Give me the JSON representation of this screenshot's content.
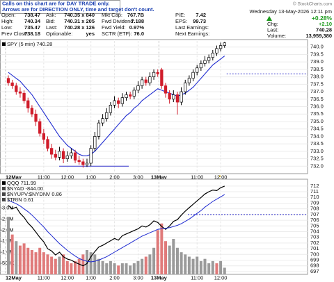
{
  "header": {
    "notice": [
      "Calls on this chart are for DAY TRADE only.",
      "Arrows are for DIRECTION ONLY, time and target don't count."
    ],
    "copyright": "© StockCharts.com",
    "rows": [
      [
        [
          "Open:",
          "738.47"
        ],
        [
          "Ask:",
          "740.35 x 840"
        ],
        [
          "Mkt Cap:",
          "767.7B"
        ],
        [
          "P/E:",
          "7.42"
        ]
      ],
      [
        [
          "High:",
          "740.34"
        ],
        [
          "Bid:",
          "740.31 x 205"
        ],
        [
          "Fwd Dividend:",
          "7.188"
        ],
        [
          "EPS:",
          "99.73"
        ]
      ],
      [
        [
          "Low:",
          "735.47"
        ],
        [
          "Last:",
          "740.28 x 126"
        ],
        [
          "Fwd Yield:",
          "0.97%"
        ],
        [
          "Last Earnings:"
        ]
      ],
      [
        [
          "Prev Close:",
          "738.18"
        ],
        [
          "Optionable:",
          "yes"
        ],
        [
          "SCTR (ETF):",
          "76.0"
        ],
        [
          "Next Earnings:"
        ]
      ]
    ],
    "date": "Wednesday 13-May-2026 12:11 pm",
    "change": "+0.28%",
    "stats": [
      [
        "Chg:",
        "+2.10"
      ],
      [
        "Last:",
        "740.28"
      ],
      [
        "Volume:",
        "13,959,380"
      ]
    ]
  },
  "chart_data": [
    {
      "type": "candlestick",
      "name": "SPY (5 min) 740.28",
      "categories": [
        "12May",
        null,
        null,
        null,
        null,
        null,
        null,
        null,
        null,
        "11:00",
        null,
        null,
        null,
        null,
        null,
        "12:00",
        null,
        null,
        null,
        null,
        null,
        "1:00",
        null,
        null,
        null,
        null,
        null,
        "2:00",
        null,
        null,
        null,
        null,
        null,
        "3:00",
        null,
        null,
        null,
        null,
        null,
        "13May",
        null,
        null,
        null,
        null,
        null,
        null,
        null,
        null,
        "11:00",
        null,
        null,
        null,
        null,
        null,
        "12:00",
        null
      ],
      "open": [
        737.9,
        737.6,
        737.4,
        737.0,
        736.9,
        736.4,
        735.9,
        735.5,
        735.0,
        734.2,
        733.8,
        733.2,
        732.8,
        732.6,
        733.0,
        732.5,
        732.7,
        732.9,
        732.4,
        732.3,
        732.1,
        732.2,
        733.2,
        734.0,
        734.9,
        735.2,
        735.6,
        736.1,
        736.4,
        736.2,
        736.6,
        736.8,
        736.7,
        737.1,
        737.4,
        737.8,
        737.6,
        738.0,
        738.3,
        738.47,
        737.4,
        736.9,
        736.5,
        736.8,
        736.3,
        737.0,
        737.6,
        737.9,
        738.3,
        738.6,
        738.9,
        739.1,
        739.3,
        739.6,
        739.9,
        740.1
      ],
      "high": [
        738.1,
        737.8,
        737.6,
        737.3,
        737.1,
        736.6,
        736.1,
        735.8,
        735.2,
        734.5,
        734.0,
        733.5,
        733.1,
        733.3,
        733.2,
        733.0,
        733.2,
        733.1,
        732.7,
        732.5,
        732.5,
        733.4,
        734.3,
        735.1,
        735.5,
        735.9,
        736.3,
        736.7,
        736.6,
        736.9,
        737.0,
        737.0,
        737.3,
        737.7,
        738.0,
        738.0,
        738.3,
        738.5,
        738.5,
        738.6,
        737.6,
        737.1,
        737.1,
        737.0,
        737.3,
        737.8,
        738.1,
        738.5,
        738.8,
        739.1,
        739.4,
        739.5,
        739.8,
        740.1,
        740.3,
        740.34
      ],
      "low": [
        737.4,
        737.2,
        736.8,
        736.6,
        736.2,
        735.6,
        735.3,
        734.7,
        734.0,
        733.5,
        733.0,
        732.5,
        732.4,
        732.4,
        732.2,
        732.3,
        732.5,
        732.2,
        732.1,
        731.9,
        731.95,
        732.0,
        733.0,
        733.8,
        734.7,
        735.0,
        735.4,
        735.9,
        735.9,
        736.0,
        736.4,
        736.5,
        736.5,
        736.9,
        737.2,
        737.4,
        737.4,
        737.8,
        738.0,
        737.2,
        736.6,
        736.2,
        736.3,
        735.47,
        736.1,
        736.8,
        737.4,
        737.7,
        738.1,
        738.4,
        738.7,
        738.9,
        739.1,
        739.4,
        739.7,
        739.95
      ],
      "close": [
        737.6,
        737.4,
        737.0,
        736.9,
        736.4,
        735.9,
        735.5,
        735.0,
        734.2,
        733.8,
        733.2,
        732.8,
        732.6,
        733.0,
        732.5,
        732.7,
        732.9,
        732.4,
        732.3,
        732.1,
        732.2,
        733.2,
        734.0,
        734.9,
        735.2,
        735.6,
        736.1,
        736.4,
        736.2,
        736.6,
        736.8,
        736.7,
        737.1,
        737.4,
        737.8,
        737.6,
        738.0,
        738.3,
        738.2,
        737.4,
        736.9,
        736.5,
        736.8,
        736.3,
        737.0,
        737.6,
        737.9,
        738.3,
        738.6,
        738.9,
        739.1,
        739.3,
        739.6,
        739.9,
        740.1,
        740.28
      ],
      "up_color": "#000000",
      "down_color": "#d01c2b",
      "series": [
        {
          "color": "#1f2bd0",
          "values": [
            738.3,
            738.1,
            737.9,
            737.7,
            737.4,
            737.1,
            736.8,
            736.4,
            736.0,
            735.6,
            735.2,
            734.8,
            734.4,
            734.0,
            733.7,
            733.4,
            733.2,
            733.0,
            732.8,
            732.7,
            732.7,
            732.8,
            733.0,
            733.3,
            733.6,
            733.9,
            734.2,
            734.5,
            734.8,
            735.1,
            735.4,
            735.6,
            735.9,
            736.1,
            736.4,
            736.6,
            736.8,
            737.0,
            737.2,
            737.1,
            737.0,
            736.9,
            736.8,
            736.7,
            736.8,
            736.9,
            737.1,
            737.3,
            737.6,
            737.9,
            738.2,
            738.5,
            738.8,
            739.0,
            739.2,
            739.4
          ]
        }
      ],
      "ylim": [
        731.5,
        740.5
      ],
      "yticks": [
        {
          "value": 732,
          "label": "732.0"
        },
        {
          "value": 732.5,
          "label": "732.5"
        },
        {
          "value": 733,
          "label": "733.0"
        },
        {
          "value": 733.5,
          "label": "733.5"
        },
        {
          "value": 734,
          "label": "734.0"
        },
        {
          "value": 734.5,
          "label": "734.5"
        },
        {
          "value": 735,
          "label": "735.0"
        },
        {
          "value": 735.5,
          "label": "735.5"
        },
        {
          "value": 736,
          "label": "736.0"
        },
        {
          "value": 736.5,
          "label": "736.5"
        },
        {
          "value": 737,
          "label": "737.0"
        },
        {
          "value": 737.5,
          "label": "737.5"
        },
        {
          "value": 738,
          "label": "738.0"
        },
        {
          "value": 738.5,
          "label": "738.5"
        },
        {
          "value": 739,
          "label": "739.0"
        },
        {
          "value": 739.5,
          "label": "739.5"
        },
        {
          "value": 740,
          "label": "740.0"
        }
      ],
      "levels": [
        {
          "value": 738.2,
          "color": "#3333cc",
          "dashed": true
        },
        {
          "value": 732.0,
          "color": "#3333cc",
          "dashed": false
        }
      ],
      "grid": true
    },
    {
      "type": "line",
      "categories": [
        "12May",
        null,
        null,
        null,
        null,
        null,
        null,
        null,
        null,
        "11:00",
        null,
        null,
        null,
        null,
        null,
        "12:00",
        null,
        null,
        null,
        null,
        null,
        "1:00",
        null,
        null,
        null,
        null,
        null,
        "2:00",
        null,
        null,
        null,
        null,
        null,
        "3:00",
        null,
        null,
        null,
        null,
        null,
        "13May",
        null,
        null,
        null,
        null,
        null,
        null,
        null,
        null,
        "11:00",
        null,
        null,
        null,
        null,
        null,
        "12:00",
        null
      ],
      "series": [
        {
          "name": "QQQ 711.99",
          "color": "#000000",
          "values": [
            708.6,
            708.0,
            708.3,
            707.2,
            706.5,
            705.5,
            704.8,
            703.9,
            703.0,
            702.2,
            701.0,
            700.6,
            699.9,
            700.4,
            699.6,
            699.2,
            699.0,
            698.6,
            698.3,
            698.0,
            698.4,
            699.6,
            700.5,
            701.3,
            701.6,
            702.0,
            702.4,
            702.8,
            702.5,
            703.3,
            703.6,
            703.9,
            704.2,
            704.5,
            705.0,
            704.8,
            705.2,
            705.9,
            705.6,
            704.9,
            704.4,
            705.0,
            705.8,
            706.1,
            706.9,
            707.6,
            708.2,
            708.8,
            709.4,
            710.0,
            710.6,
            711.0,
            711.3,
            711.2,
            711.7,
            711.99
          ]
        },
        {
          "color": "#1f2bd0",
          "values": [
            709.5,
            709.2,
            708.9,
            708.5,
            708.0,
            707.5,
            706.9,
            706.2,
            705.5,
            704.8,
            704.0,
            703.3,
            702.6,
            701.9,
            701.3,
            700.7,
            700.2,
            699.7,
            699.3,
            699.0,
            698.8,
            698.7,
            698.8,
            699.0,
            699.3,
            699.6,
            700.0,
            700.4,
            700.8,
            701.2,
            701.6,
            702.0,
            702.4,
            702.8,
            703.2,
            703.5,
            703.8,
            704.1,
            704.4,
            704.5,
            704.6,
            704.7,
            704.9,
            705.1,
            705.4,
            705.8,
            706.2,
            706.7,
            707.2,
            707.7,
            708.3,
            708.8,
            709.3,
            709.7,
            710.1,
            710.5
          ]
        },
        {
          "axis": "y2",
          "type": "bar",
          "color": "#9a9a9a",
          "down_color": "#e07a7a",
          "values": [
            2600000,
            1800000,
            1500000,
            1300000,
            1400000,
            1200000,
            1100000,
            1000000,
            1200000,
            1000000,
            900000,
            800000,
            700000,
            800000,
            900000,
            600000,
            500000,
            600000,
            700000,
            900000,
            1100000,
            1000000,
            900000,
            700000,
            600000,
            500000,
            600000,
            500000,
            400000,
            500000,
            500000,
            400000,
            500000,
            600000,
            700000,
            800000,
            900000,
            1200000,
            2000000,
            2300000,
            1500000,
            1300000,
            1600000,
            1200000,
            1000000,
            900000,
            800000,
            700000,
            800000,
            600000,
            700000,
            500000,
            600000,
            500000,
            600000,
            300000
          ]
        }
      ],
      "legend_extra": [
        "$NYAD -844.00",
        "$NYUPV:$NYDNV 0.86",
        "$TRIN 0.61"
      ],
      "ylim": [
        696.5,
        713.2
      ],
      "yticks": [
        697,
        698,
        699,
        700,
        701,
        702,
        703,
        704,
        705,
        706,
        707,
        708,
        709,
        710,
        711,
        712
      ],
      "y2lim": [
        0,
        4300000
      ],
      "y2ticks": [
        {
          "value": 500000,
          "label": "500K"
        },
        {
          "value": 1000000,
          "label": "1.0M"
        },
        {
          "value": 1500000,
          "label": "1.5M"
        },
        {
          "value": 2000000,
          "label": "2.0M"
        },
        {
          "value": 2500000,
          "label": "2.5M"
        },
        {
          "value": 3000000,
          "label": "3.0M"
        }
      ],
      "levels": [
        {
          "value": 707.0,
          "color": "#3333cc",
          "dashed": true
        }
      ],
      "grid": true
    }
  ]
}
